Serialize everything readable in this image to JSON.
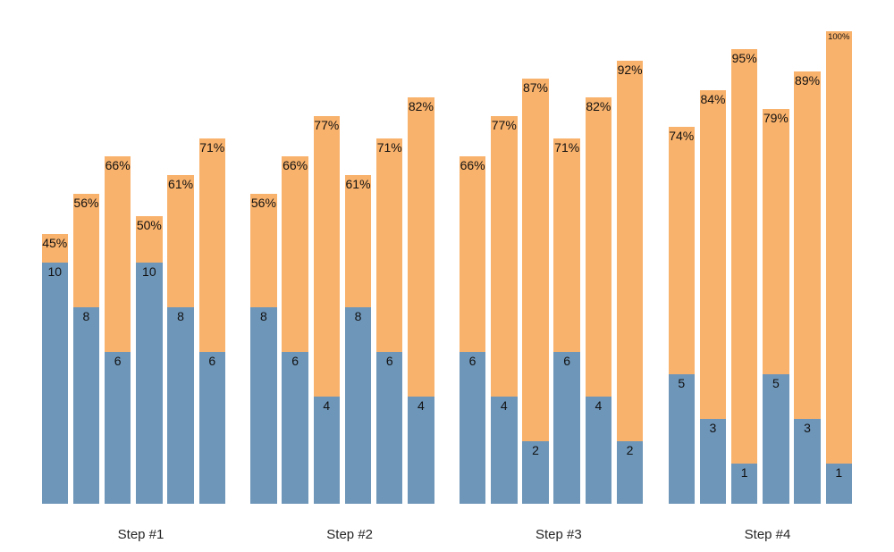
{
  "page": {
    "background": "#ffffff",
    "title": ""
  },
  "colors": {
    "bottom_segment": "#6E96B9",
    "top_segment": "#F9B26C",
    "label_text": "#111111",
    "axis_label_text": "#262626"
  },
  "chart_data": {
    "type": "bar",
    "subtype": "grouped-stacked-columns",
    "title": "",
    "xlabel": "",
    "ylabel": "",
    "grid": false,
    "axes_visible": false,
    "legend": "none",
    "categories": [
      "Step #1",
      "Step #2",
      "Step #3",
      "Step #4"
    ],
    "bars_per_group": 6,
    "series": [
      {
        "name": "bottom-count-blue",
        "color": "#6E96B9",
        "values": [
          [
            10,
            8,
            6,
            10,
            8,
            6
          ],
          [
            8,
            6,
            4,
            8,
            6,
            4
          ],
          [
            6,
            4,
            2,
            6,
            4,
            2
          ],
          [
            5,
            3,
            1,
            5,
            3,
            1
          ]
        ]
      },
      {
        "name": "top-percent-orange",
        "color": "#F9B26C",
        "percent_values": [
          [
            45,
            56,
            66,
            50,
            61,
            71
          ],
          [
            56,
            66,
            77,
            61,
            71,
            82
          ],
          [
            66,
            77,
            87,
            71,
            82,
            92
          ],
          [
            74,
            84,
            95,
            79,
            89,
            100
          ]
        ],
        "labels": [
          [
            "45%",
            "56%",
            "66%",
            "50%",
            "61%",
            "71%"
          ],
          [
            "56%",
            "66%",
            "77%",
            "61%",
            "71%",
            "82%"
          ],
          [
            "66%",
            "77%",
            "87%",
            "71%",
            "82%",
            "92%"
          ],
          [
            "74%",
            "84%",
            "95%",
            "79%",
            "89%",
            "100%"
          ]
        ]
      }
    ]
  }
}
